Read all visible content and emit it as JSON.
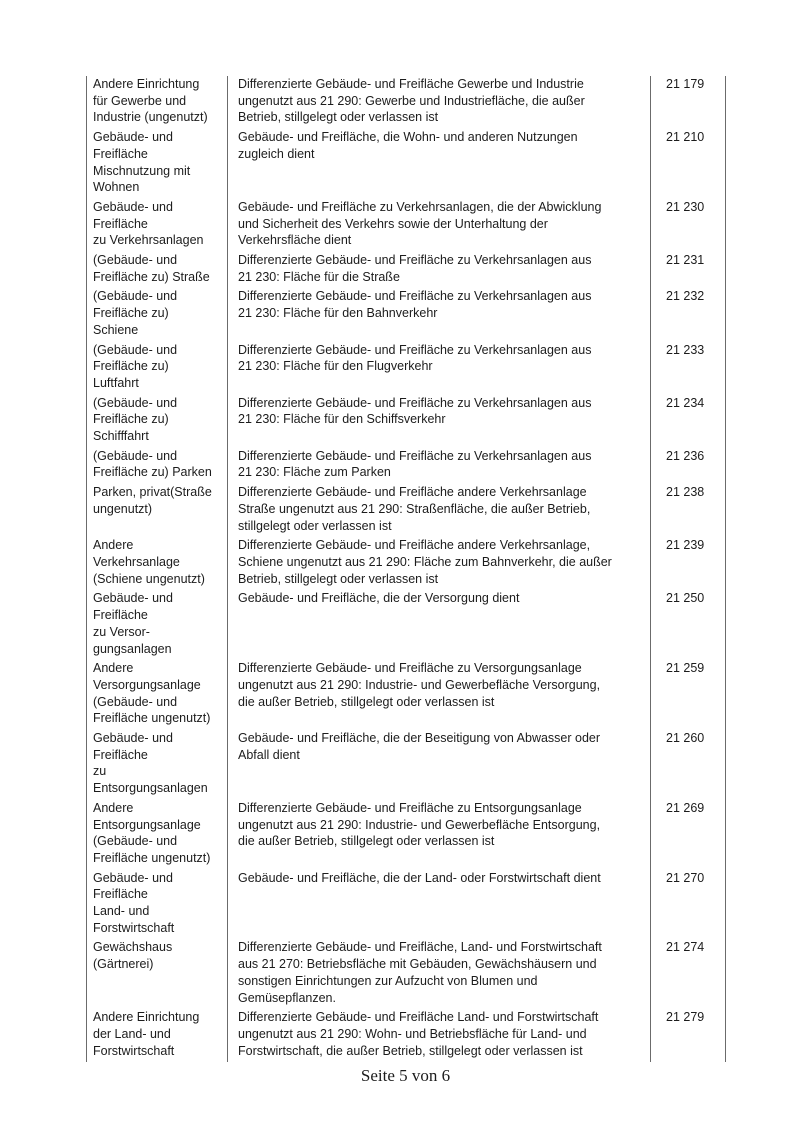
{
  "colors": {
    "background": "#ffffff",
    "text": "#1c1c1c",
    "table_rule": "#6b6b6b"
  },
  "document": {
    "footer": "Seite 5 von 6",
    "table": {
      "rows": [
        {
          "term": "Andere Einrichtung\nfür Gewerbe und\nIndustrie (ungenutzt)",
          "description": "Differenzierte Gebäude- und Freifläche Gewerbe und Industrie\nungenutzt aus 21 290: Gewerbe und Industriefläche, die außer\nBetrieb, stillgelegt oder verlassen ist",
          "code": "21 179"
        },
        {
          "term": "Gebäude- und\nFreifläche\nMischnutzung mit\nWohnen",
          "description": "Gebäude- und Freifläche, die Wohn- und anderen Nutzungen\nzugleich dient",
          "code": "21 210"
        },
        {
          "term": "Gebäude- und\nFreifläche\nzu Verkehrsanlagen",
          "description": "Gebäude- und Freifläche zu Verkehrsanlagen, die der Abwicklung\nund Sicherheit des Verkehrs sowie der Unterhaltung der\nVerkehrsfläche dient",
          "code": "21 230"
        },
        {
          "term": "(Gebäude- und\nFreifläche zu) Straße",
          "description": "Differenzierte Gebäude- und Freifläche zu Verkehrsanlagen aus\n21 230: Fläche für die Straße",
          "code": "21 231"
        },
        {
          "term": "(Gebäude- und\nFreifläche zu)\nSchiene",
          "description": "Differenzierte Gebäude- und Freifläche zu Verkehrsanlagen aus\n21 230: Fläche für den Bahnverkehr",
          "code": "21 232"
        },
        {
          "term": "(Gebäude- und\nFreifläche zu)\nLuftfahrt",
          "description": "Differenzierte Gebäude- und Freifläche zu Verkehrsanlagen aus\n21 230: Fläche für den Flugverkehr",
          "code": "21 233"
        },
        {
          "term": "(Gebäude- und\nFreifläche zu)\nSchifffahrt",
          "description": "Differenzierte Gebäude- und Freifläche zu Verkehrsanlagen aus\n21 230: Fläche für den Schiffsverkehr",
          "code": "21 234"
        },
        {
          "term": "(Gebäude- und\nFreifläche zu) Parken",
          "description": "Differenzierte Gebäude- und Freifläche zu Verkehrsanlagen aus\n21 230: Fläche zum Parken",
          "code": "21 236"
        },
        {
          "term": "Parken, privat(Straße\nungenutzt)",
          "description": "Differenzierte Gebäude- und Freifläche andere Verkehrsanlage\nStraße ungenutzt aus 21 290: Straßenfläche, die außer Betrieb,\nstillgelegt oder verlassen ist",
          "code": "21 238"
        },
        {
          "term": "Andere\nVerkehrsanlage\n(Schiene ungenutzt)",
          "description": "Differenzierte Gebäude- und Freifläche andere Verkehrsanlage,\nSchiene ungenutzt aus 21 290: Fläche zum Bahnverkehr, die außer\nBetrieb, stillgelegt oder verlassen ist",
          "code": "21 239"
        },
        {
          "term": "Gebäude- und\nFreifläche\nzu Versor-\ngungsanlagen",
          "description": "Gebäude- und Freifläche, die der Versorgung dient",
          "code": "21 250"
        },
        {
          "term": "Andere\nVersorgungsanlage\n(Gebäude- und\nFreifläche ungenutzt)",
          "description": "Differenzierte Gebäude- und Freifläche zu Versorgungsanlage\nungenutzt aus 21 290: Industrie- und Gewerbefläche Versorgung,\ndie außer Betrieb, stillgelegt oder verlassen ist",
          "code": "21 259"
        },
        {
          "term": "Gebäude- und\nFreifläche\nzu\nEntsorgungsanlagen",
          "description": "Gebäude- und Freifläche, die der Beseitigung von Abwasser oder\nAbfall dient",
          "code": "21 260"
        },
        {
          "term": "Andere\nEntsorgungsanlage\n(Gebäude- und\nFreifläche ungenutzt)",
          "description": "Differenzierte Gebäude- und Freifläche zu Entsorgungsanlage\nungenutzt aus 21 290: Industrie- und Gewerbefläche Entsorgung,\ndie außer Betrieb, stillgelegt oder verlassen ist",
          "code": "21 269"
        },
        {
          "term": "Gebäude- und\nFreifläche\nLand- und\nForstwirtschaft",
          "description": "Gebäude- und Freifläche, die der Land- oder Forstwirtschaft dient",
          "code": "21 270"
        },
        {
          "term": "Gewächshaus\n(Gärtnerei)",
          "description": "Differenzierte Gebäude- und Freifläche, Land- und Forstwirtschaft\naus 21 270: Betriebsfläche mit Gebäuden, Gewächshäusern und\nsonstigen Einrichtungen zur Aufzucht von Blumen und\nGemüsepflanzen.",
          "code": "21 274"
        },
        {
          "term": "Andere Einrichtung\nder Land- und\nForstwirtschaft",
          "description": "Differenzierte Gebäude- und Freifläche Land- und Forstwirtschaft\nungenutzt aus 21 290: Wohn- und Betriebsfläche für Land- und\nForstwirtschaft, die außer Betrieb, stillgelegt oder verlassen ist",
          "code": "21 279"
        }
      ]
    }
  }
}
